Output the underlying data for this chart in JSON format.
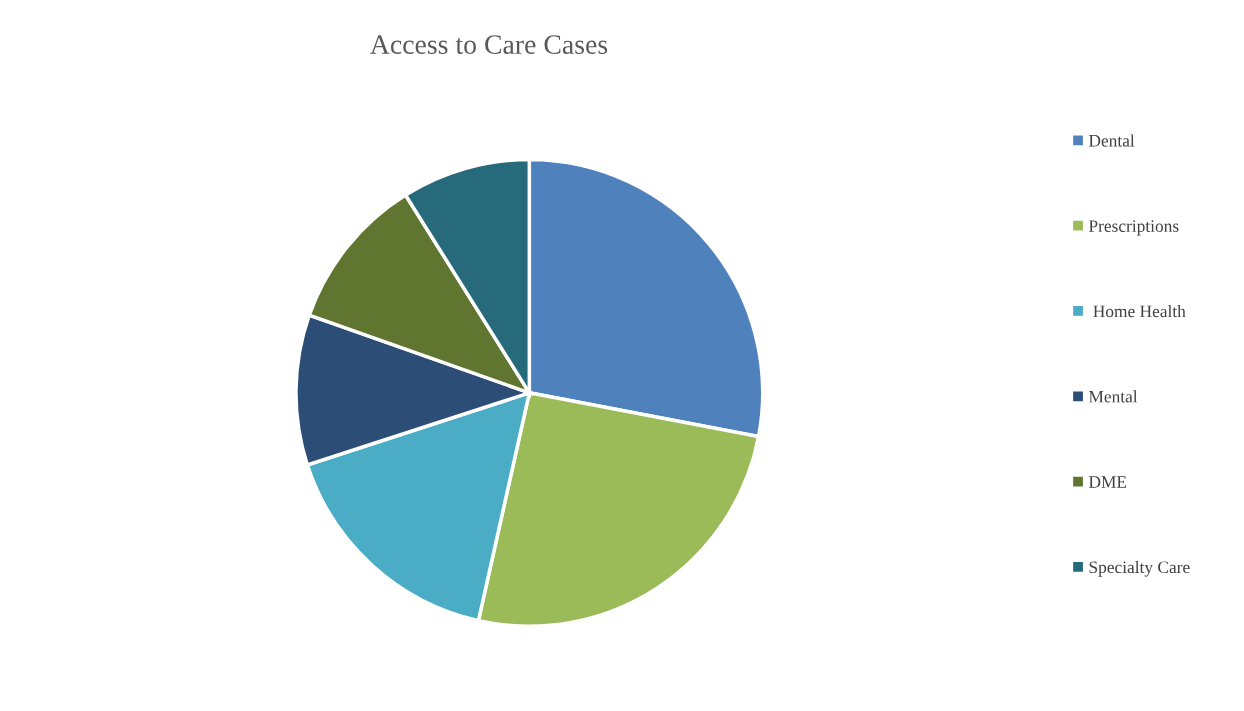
{
  "chart_data": {
    "type": "pie",
    "title": "Access to Care Cases",
    "categories": [
      "Dental",
      "Prescriptions",
      " Home Health",
      "Mental",
      "DME",
      "Specialty Care"
    ],
    "values": [
      28.0,
      25.5,
      16.5,
      10.4,
      10.7,
      8.9
    ],
    "colors": [
      "#4f81bd",
      "#9bbb59",
      "#4bacc6",
      "#2c4d75",
      "#5f7530",
      "#276a7c"
    ],
    "legend": "right"
  }
}
